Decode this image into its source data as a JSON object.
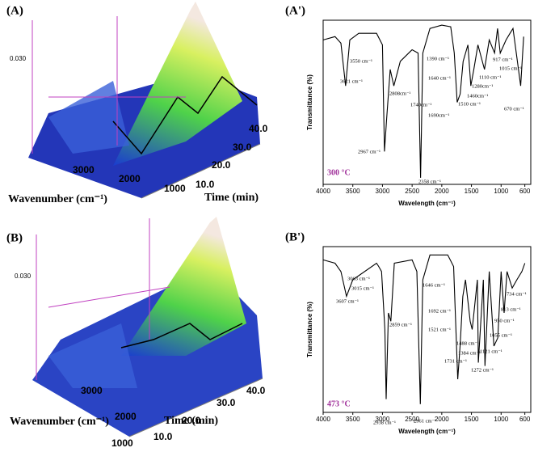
{
  "chart_data": [
    {
      "type": "surface",
      "title": "(A)",
      "xlabel": "Wavenumber (cm⁻¹)",
      "ylabel": "Time (min)",
      "zticks": [
        {
          "value": 0.03,
          "label": "0.030"
        }
      ],
      "xticks": [
        3000,
        2000,
        1000
      ],
      "yticks": [
        {
          "value": 10,
          "label": "10.0"
        },
        {
          "value": 20,
          "label": "20.0"
        },
        {
          "value": 30,
          "label": "30.0"
        },
        {
          "value": 40,
          "label": "40.0"
        }
      ]
    },
    {
      "type": "line",
      "title": "(A')",
      "annotation": "300 °C",
      "xlabel": "Wavelength (cm⁻¹)",
      "ylabel": "Transmittance (%)",
      "x": [
        4000,
        3800,
        3700,
        3621,
        3550,
        3400,
        3100,
        3000,
        2967,
        2930,
        2870,
        2808,
        2700,
        2500,
        2400,
        2358,
        2320,
        2200,
        2000,
        1850,
        1790,
        1740,
        1690,
        1640,
        1560,
        1510,
        1460,
        1390,
        1280,
        1200,
        1110,
        1060,
        1015,
        917,
        850,
        800,
        670,
        620
      ],
      "series": [
        {
          "color": "#000000",
          "values": [
            88,
            90,
            86,
            60,
            88,
            92,
            92,
            85,
            20,
            40,
            70,
            60,
            75,
            82,
            80,
            4,
            80,
            95,
            97,
            96,
            80,
            50,
            55,
            75,
            85,
            60,
            70,
            85,
            70,
            88,
            80,
            95,
            80,
            88,
            92,
            95,
            60,
            90
          ]
        }
      ],
      "peak_labels": [
        "3550 cm⁻¹",
        "3621 cm⁻¹",
        "2808cm⁻¹",
        "2967 cm⁻¹",
        "2358 cm⁻¹",
        "1390 cm⁻¹",
        "1640 cm⁻¹",
        "1740cm⁻¹",
        "1690cm⁻¹",
        "1510 cm⁻¹",
        "1460cm⁻¹",
        "1280cm⁻¹",
        "1110 cm⁻¹",
        "1015 cm⁻¹",
        "917 cm⁻¹",
        "670 cm⁻¹"
      ],
      "xlim": [
        4000,
        500
      ],
      "ylim": [
        0,
        100
      ],
      "xticks": [
        4000,
        3500,
        3000,
        2500,
        2000,
        1500,
        1000,
        600
      ]
    },
    {
      "type": "surface",
      "title": "(B)",
      "xlabel": "Wavenumber (cm⁻¹)",
      "ylabel": "Time (min)",
      "zticks": [
        {
          "value": 0.03,
          "label": "0.030"
        }
      ],
      "xticks": [
        3000,
        2000,
        1000
      ],
      "yticks": [
        {
          "value": 10,
          "label": "10.0"
        },
        {
          "value": 20,
          "label": "20.0"
        },
        {
          "value": 30,
          "label": "30.0"
        },
        {
          "value": 40,
          "label": "40.0"
        }
      ]
    },
    {
      "type": "line",
      "title": "(B')",
      "annotation": "473 °C",
      "xlabel": "Wavelength (cm⁻¹)",
      "ylabel": "Transmittance (%)",
      "x": [
        4000,
        3800,
        3700,
        3607,
        3500,
        3100,
        3063,
        3015,
        2960,
        2938,
        2900,
        2859,
        2800,
        2500,
        2420,
        2361,
        2320,
        2200,
        1900,
        1800,
        1731,
        1692,
        1646,
        1600,
        1521,
        1488,
        1400,
        1384,
        1300,
        1272,
        1200,
        1121,
        1055,
        1000,
        950,
        900,
        813,
        734,
        650,
        600
      ],
      "series": [
        {
          "color": "#000000",
          "values": [
            92,
            90,
            85,
            70,
            80,
            90,
            88,
            85,
            50,
            8,
            60,
            55,
            90,
            92,
            85,
            5,
            80,
            95,
            95,
            88,
            20,
            40,
            70,
            80,
            55,
            50,
            80,
            30,
            80,
            28,
            85,
            40,
            45,
            85,
            60,
            85,
            75,
            80,
            85,
            90
          ]
        }
      ],
      "peak_labels": [
        "3063 cm⁻¹",
        "3015 cm⁻¹",
        "3607 cm⁻¹",
        "2859 cm⁻¹",
        "2938 cm⁻¹",
        "2361 cm⁻¹",
        "1646 cm⁻¹",
        "1692 cm⁻¹",
        "1521 cm⁻¹",
        "1488 cm⁻¹",
        "1384 cm⁻¹",
        "1731 cm⁻¹",
        "1121 cm⁻¹",
        "1272 cm⁻¹",
        "1055 cm⁻¹",
        "950 cm⁻¹",
        "813 cm⁻¹",
        "734 cm⁻¹"
      ],
      "xlim": [
        4000,
        500
      ],
      "ylim": [
        0,
        100
      ],
      "xticks": [
        4000,
        3500,
        3000,
        2500,
        2000,
        1500,
        1000,
        600
      ]
    }
  ]
}
